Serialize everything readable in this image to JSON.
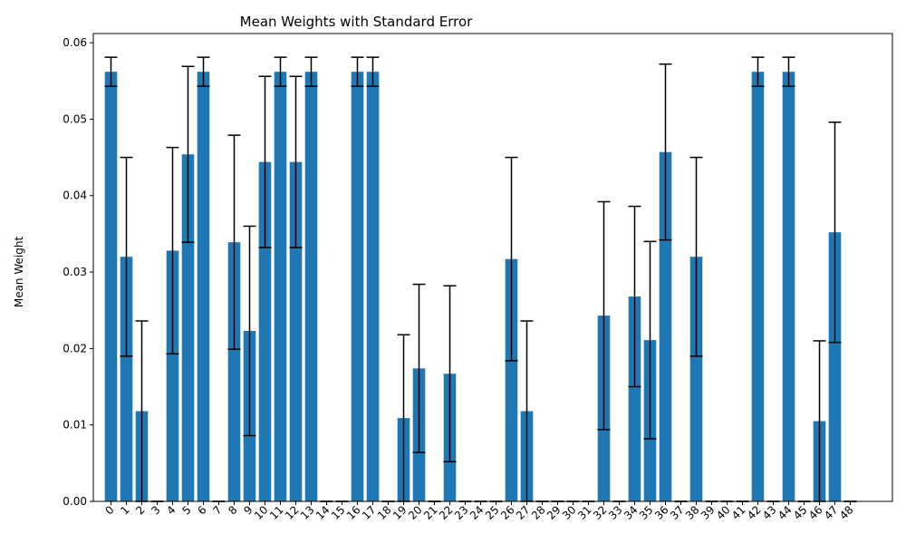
{
  "chart_data": {
    "type": "bar",
    "title": "Mean Weights with Standard Error",
    "xlabel": "",
    "ylabel": "Mean Weight",
    "ylim": [
      0,
      0.0612
    ],
    "yticks": [
      "0.00",
      "0.01",
      "0.02",
      "0.03",
      "0.04",
      "0.05",
      "0.06"
    ],
    "ytick_values": [
      0,
      0.01,
      0.02,
      0.03,
      0.04,
      0.05,
      0.06
    ],
    "categories": [
      "0",
      "1",
      "2",
      "3",
      "4",
      "5",
      "6",
      "7",
      "8",
      "9",
      "10",
      "11",
      "12",
      "13",
      "14",
      "15",
      "16",
      "17",
      "18",
      "19",
      "20",
      "21",
      "22",
      "23",
      "24",
      "25",
      "26",
      "27",
      "28",
      "29",
      "30",
      "31",
      "32",
      "33",
      "34",
      "35",
      "36",
      "37",
      "38",
      "39",
      "40",
      "41",
      "42",
      "43",
      "44",
      "45",
      "46",
      "47",
      "48"
    ],
    "values": [
      0.0562,
      0.032,
      0.0118,
      0,
      0.0328,
      0.0454,
      0.0562,
      0,
      0.0339,
      0.0223,
      0.0444,
      0.0562,
      0.0444,
      0.0562,
      0,
      0,
      0.0562,
      0.0562,
      0,
      0.0109,
      0.0174,
      0,
      0.0167,
      0,
      0,
      0,
      0.0317,
      0.0118,
      0,
      0,
      0,
      0,
      0.0243,
      0,
      0.0268,
      0.0211,
      0.0457,
      0,
      0.032,
      0,
      0,
      0,
      0.0562,
      0,
      0.0562,
      0,
      0.0105,
      0.0352,
      0
    ],
    "errors": [
      0.0019,
      0.013,
      0.0118,
      0,
      0.0135,
      0.0115,
      0.0019,
      0,
      0.014,
      0.0137,
      0.0112,
      0.0019,
      0.0112,
      0.0019,
      0,
      0,
      0.0019,
      0.0019,
      0,
      0.0109,
      0.011,
      0,
      0.0115,
      0,
      0,
      0,
      0.0133,
      0.0118,
      0,
      0,
      0,
      0,
      0.0149,
      0,
      0.0118,
      0.0129,
      0.0115,
      0,
      0.013,
      0,
      0,
      0,
      0.0019,
      0,
      0.0019,
      0,
      0.0105,
      0.0144,
      0
    ],
    "bar_color": "#1f77b4",
    "error_color": "#000000",
    "grid": false,
    "legend": "none"
  }
}
